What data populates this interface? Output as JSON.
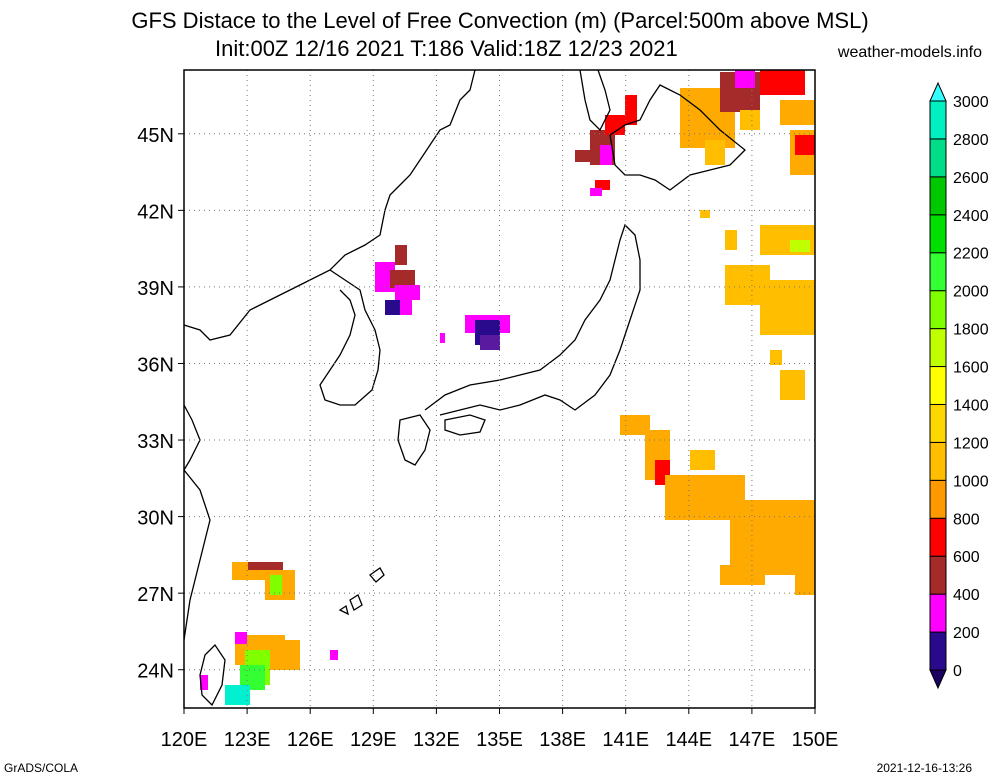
{
  "header": {
    "title": "GFS Distace to the Level of Free Convection (m) (Parcel:500m above MSL)",
    "subtitle": "Init:00Z 12/16 2021 T:186 Valid:18Z 12/23 2021",
    "credit": "weather-models.info"
  },
  "map": {
    "lon_range": [
      120,
      150
    ],
    "lat_range": [
      22.5,
      47.5
    ],
    "x_ticks": [
      "120E",
      "123E",
      "126E",
      "129E",
      "132E",
      "135E",
      "138E",
      "141E",
      "144E",
      "147E",
      "150E"
    ],
    "y_ticks": [
      "24N",
      "27N",
      "30N",
      "33N",
      "36N",
      "39N",
      "42N",
      "45N"
    ],
    "grid": true
  },
  "colorbar": {
    "levels": [
      "0",
      "200",
      "400",
      "600",
      "800",
      "1000",
      "1200",
      "1400",
      "1600",
      "1800",
      "2000",
      "2200",
      "2400",
      "2600",
      "2800",
      "3000"
    ],
    "colors": [
      "#2a0a8c",
      "#ff00ff",
      "#a52a2a",
      "#ff0000",
      "#ff9900",
      "#ffbf00",
      "#ffd700",
      "#ffff00",
      "#bfff00",
      "#7fff00",
      "#33ff33",
      "#00e000",
      "#00c800",
      "#00dd88",
      "#00f0c0",
      "#00ffff"
    ],
    "under_color": "#1a0060",
    "over_color": "#33ffff"
  },
  "footer": {
    "left": "GrADS/COLA",
    "right": "2021-12-16-13:26"
  }
}
